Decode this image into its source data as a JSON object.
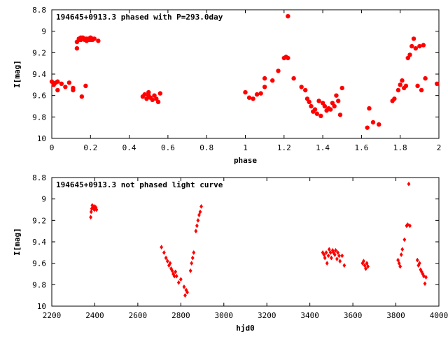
{
  "chart_data": [
    {
      "type": "scatter",
      "title": "194645+0913.3 phased with P=293.0day",
      "xlabel": "phase",
      "ylabel": "I[mag]",
      "xlim": [
        0,
        2
      ],
      "ylim": [
        8.8,
        10
      ],
      "y_inverted": true,
      "grid": false,
      "marker": "filled circle",
      "color": "#ff0000",
      "x_ticks": [
        0,
        0.2,
        0.4,
        0.6,
        0.8,
        1,
        1.2,
        1.4,
        1.6,
        1.8,
        2
      ],
      "x_tick_labels": [
        "0",
        "0.2",
        "0.4",
        "0.6",
        "0.8",
        "1",
        "1.2",
        "1.4",
        "1.6",
        "1.8",
        "2"
      ],
      "y_ticks": [
        8.8,
        9,
        9.2,
        9.4,
        9.6,
        9.8,
        10
      ],
      "y_tick_labels": [
        "8.8",
        "9",
        "9.2",
        "9.4",
        "9.6",
        "9.8",
        "10"
      ],
      "x": [
        0.0,
        0.01,
        0.02,
        0.03,
        0.03,
        0.05,
        0.07,
        0.09,
        0.11,
        0.11,
        0.13,
        0.13,
        0.14,
        0.14,
        0.15,
        0.15,
        0.16,
        0.16,
        0.17,
        0.17,
        0.18,
        0.18,
        0.19,
        0.19,
        0.2,
        0.2,
        0.21,
        0.21,
        0.22,
        0.24,
        0.155,
        0.175,
        0.47,
        0.48,
        0.49,
        0.5,
        0.5,
        0.51,
        0.52,
        0.53,
        0.54,
        0.55,
        0.56,
        1.0,
        1.02,
        1.04,
        1.06,
        1.08,
        1.1,
        1.1,
        1.14,
        1.17,
        1.2,
        1.21,
        1.22,
        1.22,
        1.25,
        1.29,
        1.31,
        1.32,
        1.33,
        1.34,
        1.35,
        1.36,
        1.37,
        1.38,
        1.39,
        1.4,
        1.41,
        1.42,
        1.43,
        1.44,
        1.45,
        1.46,
        1.47,
        1.48,
        1.49,
        1.5,
        1.63,
        1.64,
        1.66,
        1.69,
        1.76,
        1.77,
        1.79,
        1.8,
        1.81,
        1.82,
        1.83,
        1.84,
        1.85,
        1.86,
        1.87,
        1.88,
        1.89,
        1.9,
        1.91,
        1.92,
        1.93,
        1.99
      ],
      "y": [
        9.47,
        9.5,
        9.48,
        9.55,
        9.47,
        9.49,
        9.52,
        9.48,
        9.53,
        9.55,
        9.16,
        9.1,
        9.08,
        9.07,
        9.06,
        9.08,
        9.07,
        9.06,
        9.08,
        9.07,
        9.09,
        9.07,
        9.07,
        9.08,
        9.06,
        9.08,
        9.07,
        9.08,
        9.07,
        9.09,
        9.61,
        9.51,
        9.61,
        9.59,
        9.63,
        9.6,
        9.57,
        9.62,
        9.64,
        9.6,
        9.63,
        9.66,
        9.58,
        9.57,
        9.62,
        9.63,
        9.59,
        9.58,
        9.52,
        9.44,
        9.46,
        9.37,
        9.25,
        9.24,
        9.25,
        8.86,
        9.44,
        9.52,
        9.55,
        9.63,
        9.66,
        9.7,
        9.75,
        9.73,
        9.77,
        9.65,
        9.79,
        9.67,
        9.7,
        9.74,
        9.72,
        9.73,
        9.67,
        9.7,
        9.6,
        9.65,
        9.78,
        9.53,
        9.9,
        9.72,
        9.85,
        9.87,
        9.65,
        9.63,
        9.55,
        9.5,
        9.46,
        9.53,
        9.51,
        9.25,
        9.22,
        9.14,
        9.07,
        9.16,
        9.51,
        9.14,
        9.55,
        9.13,
        9.44,
        9.49
      ]
    },
    {
      "type": "scatter",
      "title": "194645+0913.3 not phased light curve",
      "xlabel": "hjd0",
      "ylabel": "I[mag]",
      "xlim": [
        2200,
        4000
      ],
      "ylim": [
        8.8,
        10
      ],
      "y_inverted": true,
      "grid": false,
      "marker": "small diamond",
      "color": "#ff0000",
      "x_ticks": [
        2200,
        2400,
        2600,
        2800,
        3000,
        3200,
        3400,
        3600,
        3800,
        4000
      ],
      "x_tick_labels": [
        "2200",
        "2400",
        "2600",
        "2800",
        "3000",
        "3200",
        "3400",
        "3600",
        "3800",
        "4000"
      ],
      "y_ticks": [
        8.8,
        9,
        9.2,
        9.4,
        9.6,
        9.8,
        10
      ],
      "y_tick_labels": [
        "8.8",
        "9",
        "9.2",
        "9.4",
        "9.6",
        "9.8",
        "10"
      ],
      "x": [
        2381,
        2383,
        2386,
        2388,
        2390,
        2392,
        2394,
        2396,
        2398,
        2400,
        2402,
        2405,
        2408,
        2710,
        2722,
        2731,
        2738,
        2745,
        2750,
        2755,
        2760,
        2765,
        2770,
        2775,
        2780,
        2790,
        2800,
        2815,
        2820,
        2825,
        2830,
        2845,
        2850,
        2855,
        2860,
        2870,
        2875,
        2880,
        2885,
        2890,
        2895,
        3460,
        3466,
        3470,
        3476,
        3480,
        3486,
        3490,
        3496,
        3500,
        3506,
        3510,
        3516,
        3520,
        3526,
        3530,
        3536,
        3540,
        3550,
        3560,
        3645,
        3650,
        3655,
        3660,
        3665,
        3670,
        3810,
        3815,
        3820,
        3825,
        3830,
        3840,
        3850,
        3855,
        3860,
        3865,
        3900,
        3905,
        3910,
        3915,
        3920,
        3925,
        3930,
        3935,
        3940
      ],
      "y": [
        9.17,
        9.12,
        9.09,
        9.06,
        9.08,
        9.07,
        9.09,
        9.08,
        9.1,
        9.07,
        9.09,
        9.08,
        9.1,
        9.45,
        9.5,
        9.55,
        9.58,
        9.62,
        9.6,
        9.65,
        9.67,
        9.7,
        9.72,
        9.68,
        9.72,
        9.78,
        9.75,
        9.82,
        9.9,
        9.85,
        9.87,
        9.67,
        9.6,
        9.55,
        9.5,
        9.3,
        9.25,
        9.2,
        9.15,
        9.12,
        9.07,
        9.5,
        9.52,
        9.55,
        9.5,
        9.6,
        9.53,
        9.47,
        9.5,
        9.55,
        9.48,
        9.5,
        9.52,
        9.48,
        9.56,
        9.5,
        9.53,
        9.58,
        9.53,
        9.62,
        9.6,
        9.58,
        9.62,
        9.65,
        9.6,
        9.63,
        9.57,
        9.6,
        9.63,
        9.52,
        9.47,
        9.38,
        9.25,
        9.24,
        8.86,
        9.25,
        9.57,
        9.62,
        9.6,
        9.66,
        9.68,
        9.7,
        9.72,
        9.79,
        9.73
      ]
    }
  ]
}
